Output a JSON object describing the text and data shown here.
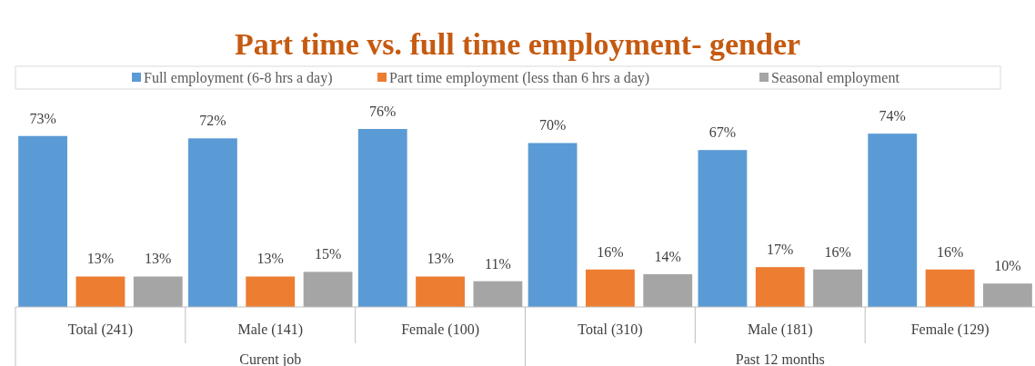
{
  "chart_data": {
    "type": "bar",
    "title": "Part time vs. full time employment- gender",
    "categories": [
      "Total (241)",
      "Male (141)",
      "Female (100)",
      "Total (310)",
      "Male (181)",
      "Female (129)"
    ],
    "annotations": [
      "Curent job",
      "Past 12 months"
    ],
    "legend": "top",
    "series": [
      {
        "name": "Full employment (6-8 hrs a day)",
        "color": "#5b9bd5",
        "values": [
          73,
          72,
          76,
          70,
          67,
          74
        ],
        "value_labels": [
          "73%",
          "72%",
          "76%",
          "70%",
          "67%",
          "74%"
        ]
      },
      {
        "name": "Part time employment (less than 6 hrs a day)",
        "color": "#ed7d31",
        "values": [
          13,
          13,
          13,
          16,
          17,
          16
        ],
        "value_labels": [
          "13%",
          "13%",
          "13%",
          "16%",
          "17%",
          "16%"
        ]
      },
      {
        "name": "Seasonal employment",
        "color": "#a5a5a5",
        "values": [
          13,
          15,
          11,
          14,
          16,
          10
        ],
        "value_labels": [
          "13%",
          "15%",
          "11%",
          "14%",
          "16%",
          "10%"
        ]
      }
    ]
  }
}
